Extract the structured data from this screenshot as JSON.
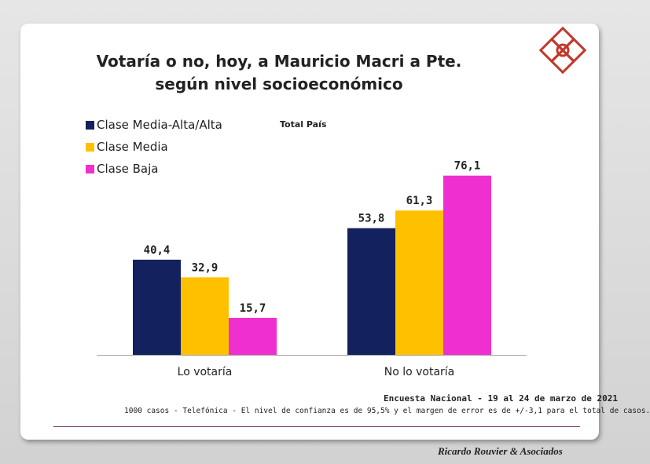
{
  "title_lines": [
    "Votaría o no, hoy,  a Mauricio Macri a Pte.",
    "según nivel socioeconómico"
  ],
  "subtitle": "Total País",
  "legend": [
    {
      "label": "Clase Media-Alta/Alta",
      "color": "#13225e"
    },
    {
      "label": "Clase Media",
      "color": "#ffc000"
    },
    {
      "label": "Clase Baja",
      "color": "#f02fd0"
    }
  ],
  "chart_data": {
    "type": "bar",
    "title": "Votaría o no, hoy,  a Mauricio Macri a Pte. según nivel socioeconómico",
    "subtitle": "Total País",
    "categories": [
      "Lo votaría",
      "No lo votaría"
    ],
    "series": [
      {
        "name": "Clase Media-Alta/Alta",
        "color": "#13225e",
        "values": [
          40.4,
          53.8
        ],
        "labels": [
          "40,4",
          "53,8"
        ]
      },
      {
        "name": "Clase Media",
        "color": "#ffc000",
        "values": [
          32.9,
          61.3
        ],
        "labels": [
          "32,9",
          "61,3"
        ]
      },
      {
        "name": "Clase Baja",
        "color": "#f02fd0",
        "values": [
          15.7,
          76.1
        ],
        "labels": [
          "15,7",
          "76,1"
        ]
      }
    ],
    "ylim": [
      0,
      100
    ],
    "grid": false,
    "legend_position": "top-left"
  },
  "source": "Encuesta Nacional - 19 al 24 de marzo de 2021",
  "note": "1000 casos - Telefónica   - El nivel de confianza  es de 95,5% y el margen de error es de +/-3,1 para el total  de casos.",
  "signature": "Ricardo Rouvier & Asociados"
}
